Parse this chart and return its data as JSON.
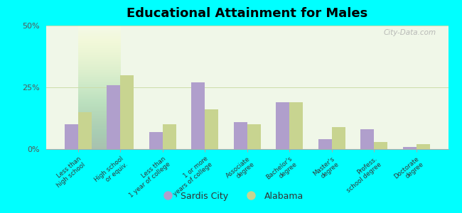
{
  "title": "Educational Attainment for Males",
  "categories": [
    "Less than\nhigh school",
    "High school\nor equiv.",
    "Less than\n1 year of college",
    "1 or more\nyears of college",
    "Associate\ndegree",
    "Bachelor's\ndegree",
    "Master's\ndegree",
    "Profess.\nschool degree",
    "Doctorate\ndegree"
  ],
  "sardis_city": [
    10,
    26,
    7,
    27,
    11,
    19,
    4,
    8,
    1
  ],
  "alabama": [
    15,
    30,
    10,
    16,
    10,
    19,
    9,
    3,
    2
  ],
  "sardis_color": "#b09fcc",
  "alabama_color": "#c8d490",
  "background_color": "#00ffff",
  "ylim": [
    0,
    50
  ],
  "yticks": [
    0,
    25,
    50
  ],
  "ytick_labels": [
    "0%",
    "25%",
    "50%"
  ],
  "legend_sardis": "Sardis City",
  "legend_alabama": "Alabama",
  "watermark": "City-Data.com"
}
